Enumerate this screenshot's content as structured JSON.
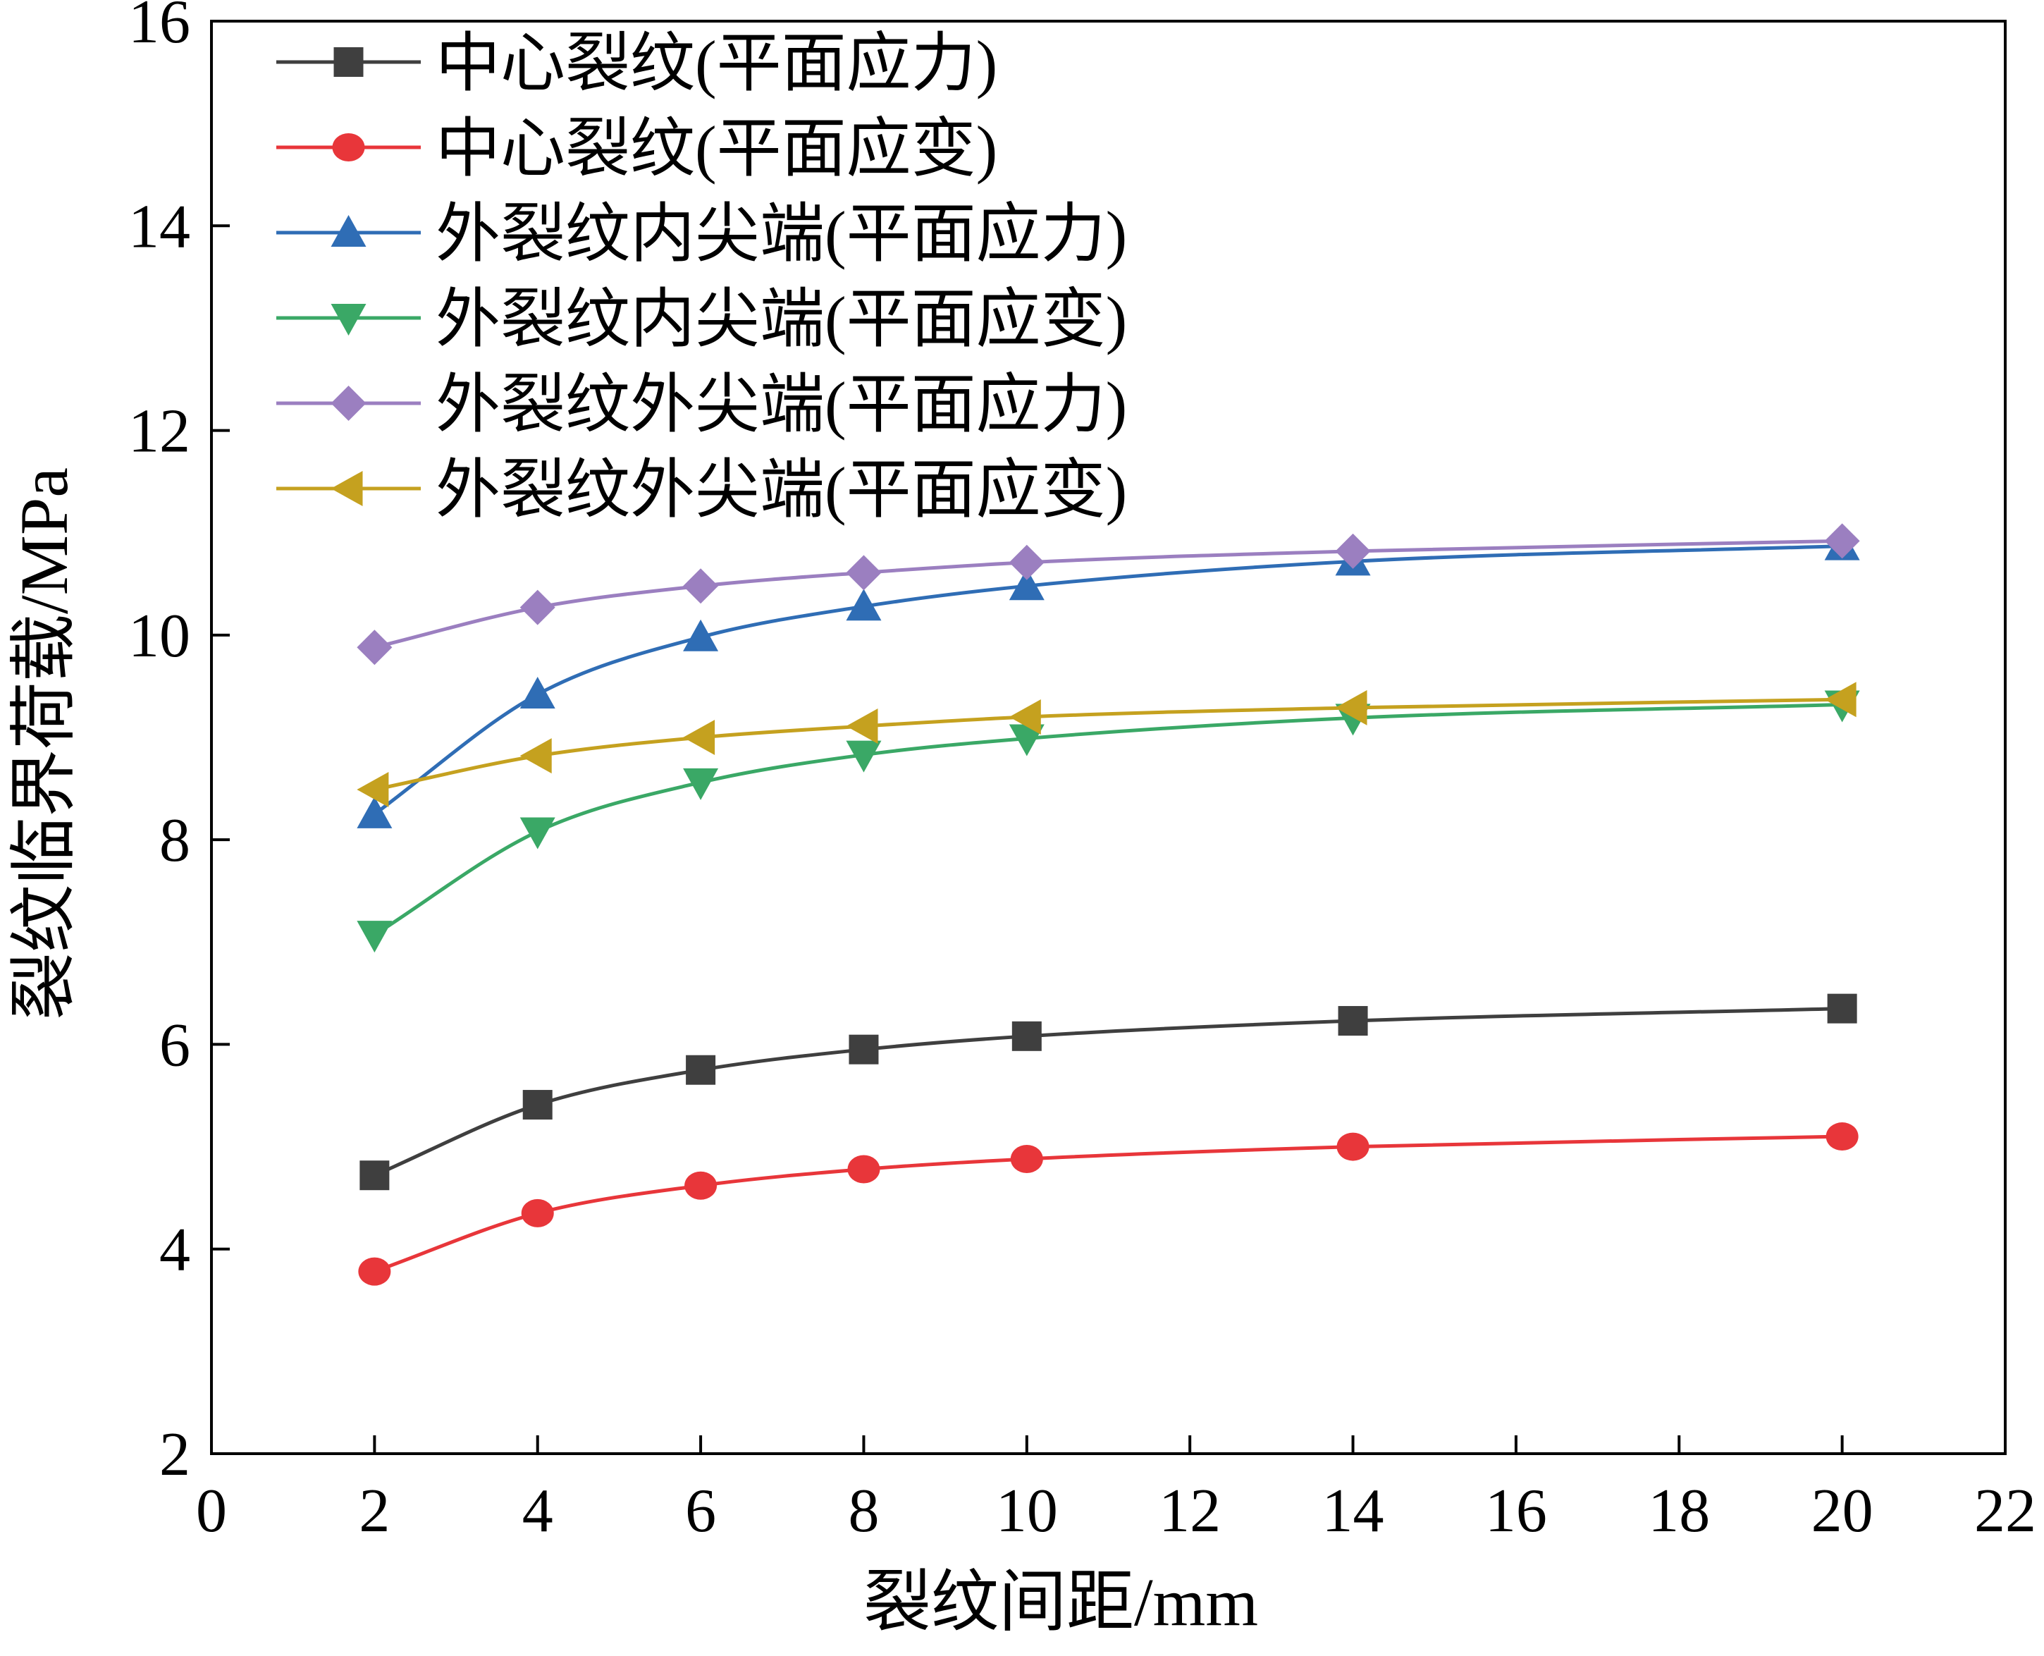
{
  "chart_data": {
    "type": "line",
    "title": "",
    "xlabel": "裂纹间距/mm",
    "ylabel": "裂纹临界荷载/MPa",
    "xlim": [
      0,
      22
    ],
    "ylim": [
      2,
      16
    ],
    "xticks": [
      0,
      2,
      4,
      6,
      8,
      10,
      12,
      14,
      16,
      18,
      20,
      22
    ],
    "yticks": [
      2,
      4,
      6,
      8,
      10,
      12,
      14,
      16
    ],
    "grid": false,
    "legend_position": "top-left",
    "x": [
      2,
      4,
      6,
      8,
      10,
      14,
      20
    ],
    "series": [
      {
        "name": "中心裂纹(平面应力)",
        "color": "#3f3f3f",
        "marker": "square",
        "values": [
          4.72,
          5.41,
          5.75,
          5.95,
          6.08,
          6.23,
          6.35
        ]
      },
      {
        "name": "中心裂纹(平面应变)",
        "color": "#e8363a",
        "marker": "circle",
        "values": [
          3.78,
          4.35,
          4.62,
          4.78,
          4.88,
          5.0,
          5.1
        ]
      },
      {
        "name": "外裂纹内尖端(平面应力)",
        "color": "#2f6db5",
        "marker": "triangle-up",
        "values": [
          8.25,
          9.42,
          9.98,
          10.28,
          10.48,
          10.72,
          10.87
        ]
      },
      {
        "name": "外裂纹内尖端(平面应变)",
        "color": "#3aa866",
        "marker": "triangle-down",
        "values": [
          7.07,
          8.08,
          8.56,
          8.83,
          8.99,
          9.19,
          9.32
        ]
      },
      {
        "name": "外裂纹外尖端(平面应力)",
        "color": "#9b7fc0",
        "marker": "diamond",
        "values": [
          9.88,
          10.27,
          10.48,
          10.61,
          10.71,
          10.82,
          10.92
        ]
      },
      {
        "name": "外裂纹外尖端(平面应变)",
        "color": "#c5a11f",
        "marker": "triangle-left",
        "values": [
          8.49,
          8.82,
          9.0,
          9.11,
          9.2,
          9.29,
          9.37
        ]
      }
    ]
  }
}
